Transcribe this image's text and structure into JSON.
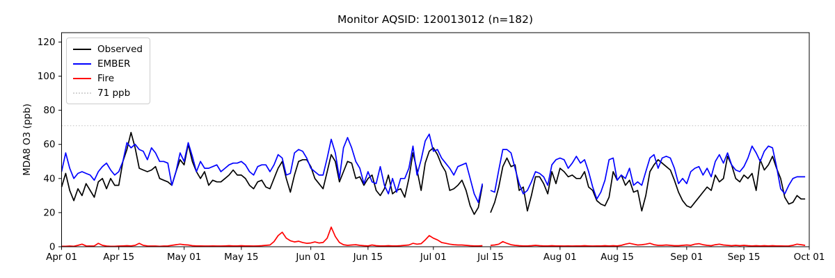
{
  "title": "Monitor AQSID: 120013012 (n=182)",
  "monitor": {
    "aqsid": "120013012",
    "n_days": 182
  },
  "axes": {
    "ylabel": "MDA8 O3 (ppb)",
    "yticks": [
      0,
      20,
      40,
      60,
      80,
      100,
      120
    ],
    "ylim": [
      0,
      125.5
    ],
    "xticks": [
      {
        "day": 0,
        "label": "Apr 01"
      },
      {
        "day": 14,
        "label": "Apr 15"
      },
      {
        "day": 30,
        "label": "May 01"
      },
      {
        "day": 44,
        "label": "May 15"
      },
      {
        "day": 61,
        "label": "Jun 01"
      },
      {
        "day": 75,
        "label": "Jun 15"
      },
      {
        "day": 91,
        "label": "Jul 01"
      },
      {
        "day": 105,
        "label": "Jul 15"
      },
      {
        "day": 122,
        "label": "Aug 01"
      },
      {
        "day": 136,
        "label": "Aug 15"
      },
      {
        "day": 153,
        "label": "Sep 01"
      },
      {
        "day": 167,
        "label": "Sep 15"
      },
      {
        "day": 183,
        "label": "Oct 01"
      }
    ]
  },
  "threshold": {
    "value": 71,
    "label": "71 ppb",
    "color": "#d3d3d3",
    "style": "dotted"
  },
  "legend": {
    "items": [
      {
        "label": "Observed",
        "color": "#000000",
        "style": "solid"
      },
      {
        "label": "EMBER",
        "color": "#0000ff",
        "style": "solid"
      },
      {
        "label": "Fire",
        "color": "#ff0000",
        "style": "solid"
      },
      {
        "label": "71 ppb",
        "color": "#d3d3d3",
        "style": "dotted"
      }
    ]
  },
  "chart_data": {
    "type": "line",
    "title": "Monitor AQSID: 120013012 (n=182)",
    "xlabel": "",
    "ylabel": "MDA8 O3 (ppb)",
    "x_unit": "day",
    "x_range": [
      "Apr 01",
      "Oct 01"
    ],
    "missing_date": "Jul 14",
    "grid": false,
    "legend_position": "upper left",
    "threshold_line": {
      "value": 71,
      "label": "71 ppb"
    },
    "series": [
      {
        "name": "Observed",
        "color": "#000000",
        "values": [
          35,
          43,
          33,
          27,
          34,
          30,
          37,
          33,
          29,
          38,
          40,
          34,
          40,
          36,
          36,
          50,
          57,
          67,
          58,
          46,
          45,
          44,
          45,
          47,
          40,
          39,
          38,
          36,
          44,
          51,
          48,
          60,
          50,
          44,
          40,
          44,
          36,
          39,
          38,
          38,
          40,
          42,
          45,
          42,
          42,
          40,
          36,
          34,
          38,
          39,
          35,
          34,
          40,
          46,
          50,
          40,
          32,
          42,
          50,
          51,
          51,
          47,
          40,
          37,
          34,
          44,
          54,
          50,
          38,
          44,
          50,
          49,
          40,
          41,
          36,
          40,
          42,
          33,
          30,
          34,
          42,
          31,
          33,
          34,
          29,
          40,
          55,
          45,
          33,
          49,
          56,
          58,
          54,
          48,
          44,
          33,
          34,
          36,
          39,
          33,
          24,
          19,
          23,
          36,
          null,
          20,
          26,
          35,
          47,
          52,
          47,
          48,
          33,
          35,
          21,
          30,
          41,
          41,
          37,
          31,
          44,
          37,
          46,
          44,
          41,
          42,
          40,
          40,
          44,
          35,
          33,
          27,
          25,
          24,
          29,
          44,
          39,
          42,
          36,
          39,
          32,
          33,
          21,
          30,
          44,
          48,
          51,
          49,
          47,
          45,
          39,
          32,
          27,
          24,
          23,
          26,
          29,
          32,
          35,
          33,
          42,
          38,
          40,
          53,
          48,
          40,
          38,
          42,
          40,
          43,
          33,
          51,
          45,
          48,
          53,
          46,
          40,
          29,
          25,
          26,
          30,
          28,
          28
        ]
      },
      {
        "name": "EMBER",
        "color": "#0000ff",
        "values": [
          44,
          55,
          46,
          40,
          43,
          44,
          43,
          42,
          39,
          44,
          47,
          49,
          45,
          42,
          44,
          50,
          61,
          58,
          60,
          57,
          56,
          51,
          58,
          55,
          50,
          50,
          49,
          36,
          44,
          55,
          50,
          61,
          53,
          44,
          50,
          46,
          46,
          47,
          48,
          44,
          46,
          48,
          49,
          49,
          50,
          48,
          44,
          42,
          47,
          48,
          48,
          44,
          48,
          54,
          52,
          42,
          43,
          55,
          57,
          56,
          52,
          46,
          44,
          42,
          42,
          52,
          63,
          55,
          40,
          58,
          64,
          58,
          50,
          46,
          37,
          44,
          38,
          37,
          47,
          36,
          31,
          40,
          32,
          40,
          40,
          46,
          59,
          42,
          51,
          62,
          66,
          56,
          57,
          52,
          49,
          46,
          42,
          47,
          48,
          49,
          40,
          31,
          26,
          37,
          null,
          33,
          32,
          45,
          57,
          57,
          55,
          46,
          37,
          31,
          33,
          38,
          44,
          43,
          41,
          36,
          48,
          51,
          52,
          51,
          46,
          49,
          53,
          49,
          51,
          44,
          35,
          28,
          32,
          39,
          51,
          52,
          39,
          42,
          40,
          46,
          36,
          38,
          36,
          44,
          52,
          54,
          46,
          52,
          53,
          52,
          46,
          37,
          40,
          37,
          44,
          46,
          47,
          42,
          46,
          41,
          50,
          54,
          49,
          55,
          48,
          45,
          44,
          47,
          52,
          59,
          55,
          50,
          56,
          59,
          58,
          47,
          34,
          31,
          36,
          40,
          41,
          41,
          41
        ]
      },
      {
        "name": "Fire",
        "color": "#ff0000",
        "values": [
          0.3,
          0.3,
          0.4,
          0.3,
          0.8,
          1.5,
          0.5,
          0.4,
          0.5,
          2.0,
          0.8,
          0.4,
          0.3,
          0.3,
          0.4,
          0.5,
          0.6,
          0.5,
          0.8,
          2.0,
          0.8,
          0.5,
          0.4,
          0.4,
          0.3,
          0.4,
          0.5,
          0.8,
          1.2,
          1.5,
          1.2,
          1.0,
          0.6,
          0.5,
          0.5,
          0.4,
          0.4,
          0.5,
          0.4,
          0.4,
          0.5,
          0.6,
          0.5,
          0.5,
          0.6,
          0.5,
          0.5,
          0.4,
          0.5,
          0.6,
          0.8,
          1.0,
          3.0,
          6.5,
          8.5,
          5.0,
          3.5,
          2.8,
          3.2,
          2.5,
          2.0,
          2.2,
          2.8,
          2.2,
          2.5,
          5.0,
          11.5,
          6.0,
          2.5,
          1.2,
          0.8,
          1.0,
          1.2,
          0.8,
          0.6,
          0.5,
          1.0,
          0.6,
          0.5,
          0.5,
          0.6,
          0.5,
          0.5,
          0.6,
          0.8,
          1.0,
          2.0,
          1.5,
          1.8,
          4.0,
          6.5,
          5.0,
          4.0,
          2.5,
          2.0,
          1.5,
          1.2,
          1.0,
          1.0,
          0.8,
          0.6,
          0.5,
          0.5,
          0.6,
          null,
          0.8,
          1.0,
          1.5,
          3.0,
          2.0,
          1.2,
          0.8,
          0.6,
          0.5,
          0.5,
          0.6,
          0.8,
          0.6,
          0.5,
          0.5,
          0.6,
          0.5,
          0.5,
          0.4,
          0.5,
          0.4,
          0.5,
          0.5,
          0.6,
          0.5,
          0.4,
          0.5,
          0.5,
          0.6,
          0.5,
          0.6,
          0.5,
          0.8,
          1.5,
          2.0,
          1.5,
          1.0,
          1.2,
          1.5,
          2.0,
          1.2,
          0.8,
          0.8,
          1.0,
          0.8,
          0.6,
          0.6,
          0.8,
          1.0,
          0.8,
          1.5,
          1.8,
          1.2,
          0.8,
          0.6,
          1.2,
          1.5,
          1.0,
          0.8,
          0.6,
          0.8,
          0.6,
          0.8,
          0.6,
          0.5,
          0.6,
          0.5,
          0.6,
          0.5,
          0.6,
          0.5,
          0.5,
          0.4,
          0.5,
          0.8,
          1.5,
          1.2,
          0.8
        ]
      }
    ]
  }
}
